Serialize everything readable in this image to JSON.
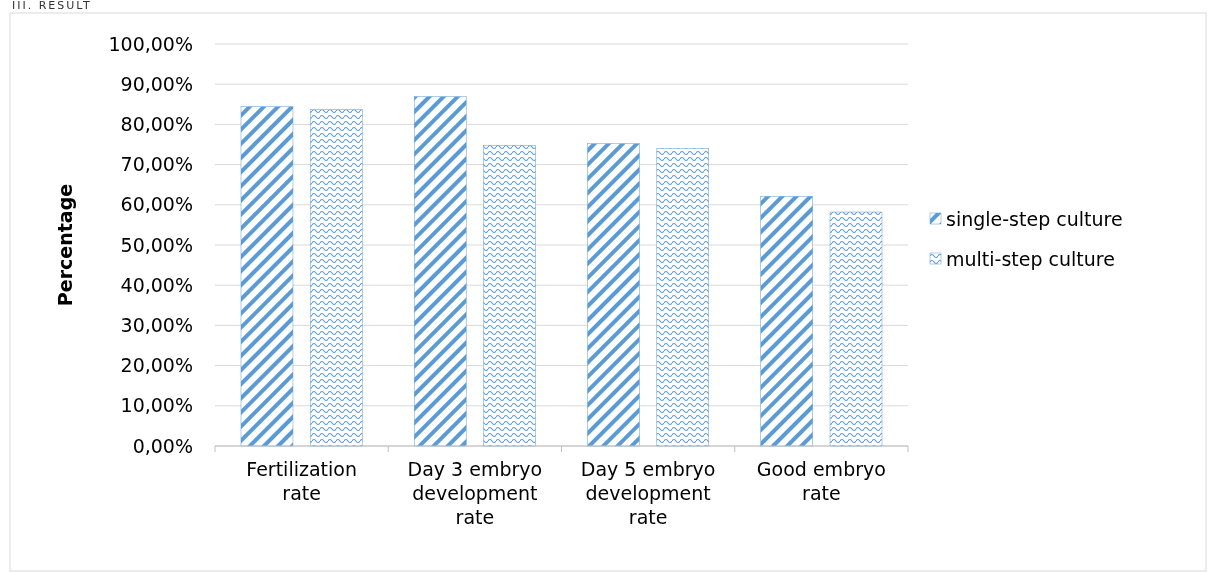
{
  "chart_data": {
    "type": "bar",
    "ylabel": "Percentage",
    "annotations": [
      "III. RESULT"
    ],
    "categories": [
      "Fertilization rate",
      "Day 3 embryo development rate",
      "Day 5 embryo development rate",
      "Good embryo rate"
    ],
    "series": [
      {
        "name": "single-step culture",
        "color": "#5b9bd5",
        "values": [
          84.4,
          86.9,
          75.2,
          62.1
        ]
      },
      {
        "name": "multi-step culture",
        "color": "#5b9bd5",
        "values": [
          83.7,
          74.8,
          74.0,
          58.2
        ]
      }
    ],
    "ylim": [
      0,
      100
    ],
    "yticks": [
      {
        "value": 0,
        "label": "0,00%"
      },
      {
        "value": 10,
        "label": "10,00%"
      },
      {
        "value": 20,
        "label": "20,00%"
      },
      {
        "value": 30,
        "label": "30,00%"
      },
      {
        "value": 40,
        "label": "40,00%"
      },
      {
        "value": 50,
        "label": "50,00%"
      },
      {
        "value": 60,
        "label": "60,00%"
      },
      {
        "value": 70,
        "label": "70,00%"
      },
      {
        "value": 80,
        "label": "80,00%"
      },
      {
        "value": 90,
        "label": "90,00%"
      },
      {
        "value": 100,
        "label": "100,00%"
      }
    ],
    "grid": "y",
    "legend": "right"
  }
}
